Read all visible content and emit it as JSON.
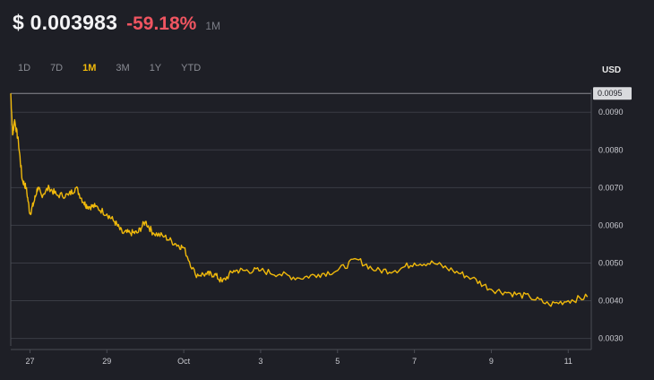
{
  "header": {
    "price": "$ 0.003983",
    "change": "-59.18%",
    "period": "1M"
  },
  "tabs": [
    {
      "label": "1D",
      "active": false
    },
    {
      "label": "7D",
      "active": false
    },
    {
      "label": "1M",
      "active": true
    },
    {
      "label": "3M",
      "active": false
    },
    {
      "label": "1Y",
      "active": false
    },
    {
      "label": "YTD",
      "active": false
    }
  ],
  "currency_label": "USD",
  "colors": {
    "background": "#1e1f26",
    "line": "#f0b90b",
    "negative": "#f05561",
    "grid": "#3a3c44",
    "highlight_tag": "#d9dadd"
  },
  "chart_data": {
    "type": "line",
    "title": "",
    "xlabel": "",
    "ylabel": "USD",
    "ylim": [
      0.0028,
      0.0096
    ],
    "y_ticks": [
      "0.0030",
      "0.0040",
      "0.0050",
      "0.0060",
      "0.0070",
      "0.0080",
      "0.0090"
    ],
    "y_highlight": "0.0095",
    "x_ticks": [
      "27",
      "29",
      "Oct",
      "3",
      "5",
      "7",
      "9",
      "11"
    ],
    "x_tick_days": [
      27,
      29,
      31,
      33,
      35,
      37,
      39,
      41
    ],
    "grid": true,
    "series": [
      {
        "x": [
          26.5,
          26.55,
          26.6,
          26.7,
          26.8,
          26.9,
          27.0,
          27.1,
          27.2,
          27.3,
          27.5,
          27.7,
          28.0,
          28.2,
          28.4,
          28.5,
          28.7,
          29.0,
          29.2,
          29.4,
          29.6,
          29.8,
          30.0,
          30.2,
          30.5,
          30.8,
          31.0,
          31.3,
          31.6,
          31.8,
          32.0,
          32.3,
          32.6,
          33.0,
          33.5,
          34.0,
          34.5,
          35.0,
          35.5,
          36.0,
          36.5,
          37.0,
          37.5,
          38.0,
          38.5,
          39.0,
          39.5,
          40.0,
          40.5,
          41.0,
          41.5
        ],
        "y": [
          0.0095,
          0.0084,
          0.0088,
          0.0082,
          0.0072,
          0.007,
          0.0063,
          0.0066,
          0.007,
          0.0068,
          0.007,
          0.0068,
          0.0068,
          0.007,
          0.0066,
          0.0065,
          0.0065,
          0.0063,
          0.0061,
          0.0058,
          0.0058,
          0.0058,
          0.0061,
          0.0058,
          0.0057,
          0.0055,
          0.0054,
          0.0047,
          0.0047,
          0.0047,
          0.0045,
          0.0048,
          0.0048,
          0.0048,
          0.0047,
          0.0046,
          0.0047,
          0.0048,
          0.0051,
          0.0048,
          0.0048,
          0.005,
          0.005,
          0.0048,
          0.0046,
          0.0043,
          0.0042,
          0.0041,
          0.0039,
          0.004,
          0.0041
        ]
      }
    ]
  }
}
